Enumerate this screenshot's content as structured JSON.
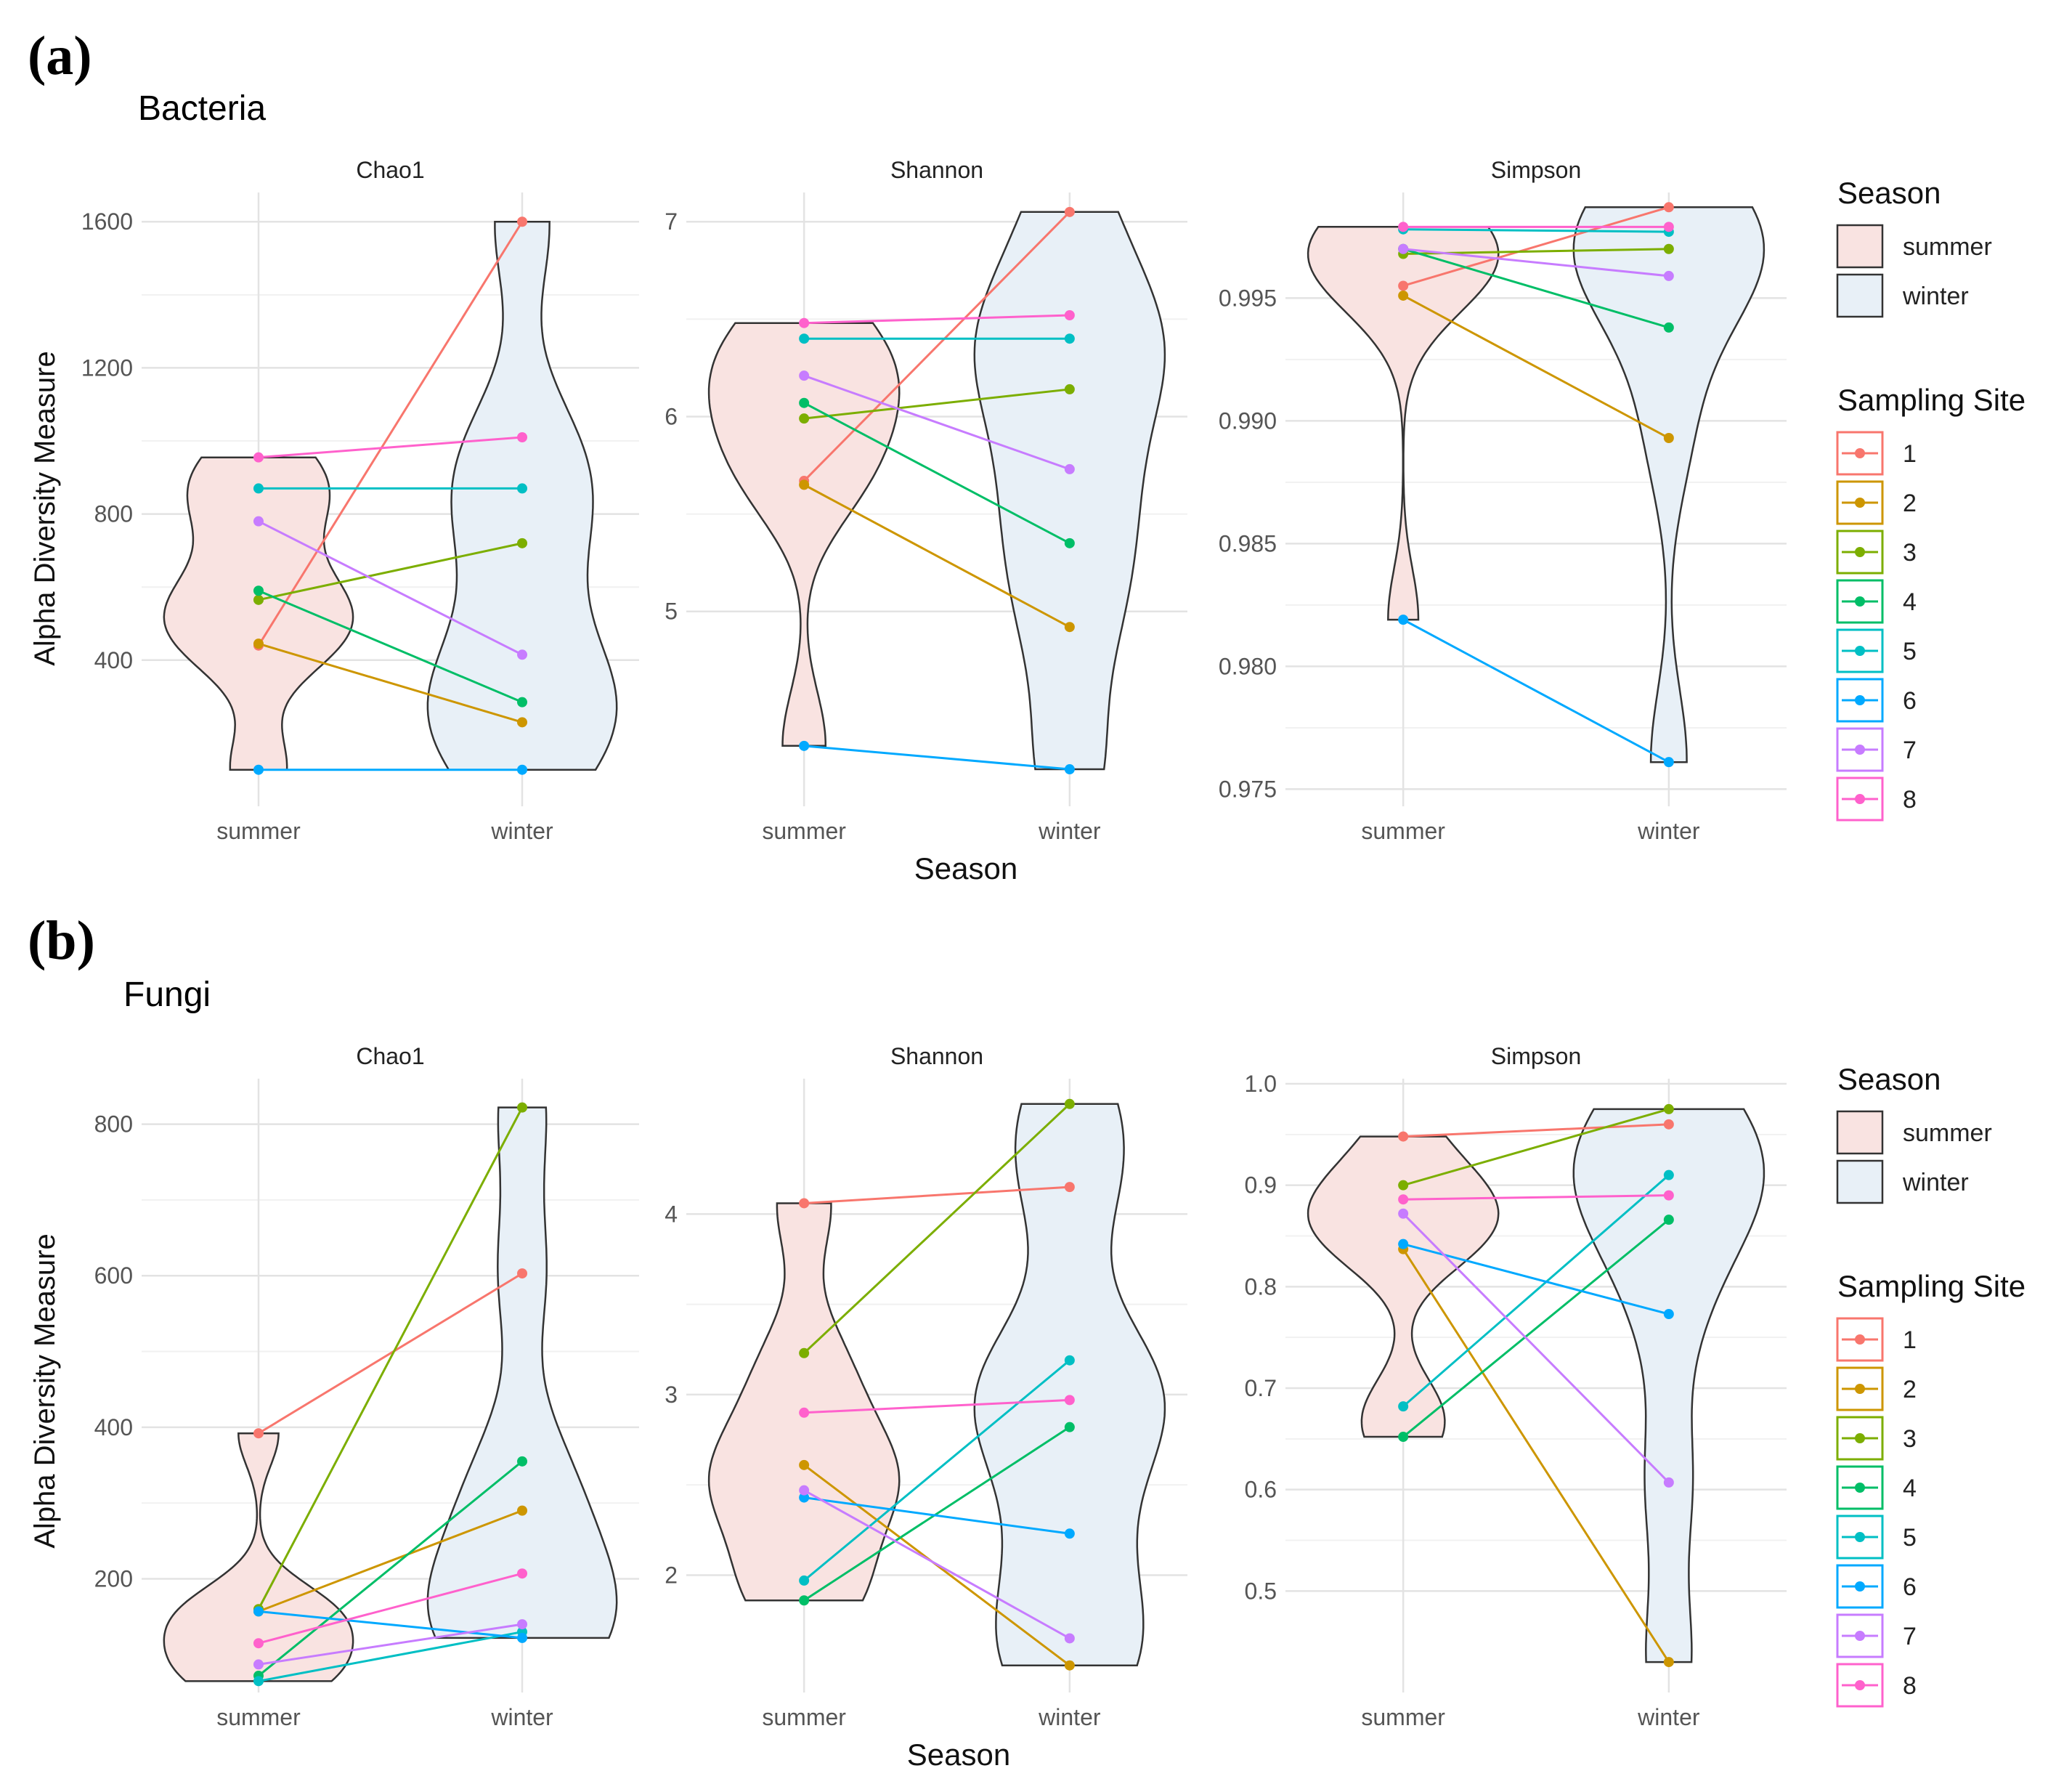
{
  "panels": [
    {
      "label": "(a)",
      "title": "Bacteria",
      "x_title": "Season",
      "y_title": "Alpha Diversity Measure"
    },
    {
      "label": "(b)",
      "title": "Fungi",
      "x_title": "Season",
      "y_title": "Alpha Diversity Measure"
    }
  ],
  "legend": {
    "season_title": "Season",
    "season_items": [
      {
        "label": "summer",
        "fill": "#f9e3e1"
      },
      {
        "label": "winter",
        "fill": "#e8f0f7"
      }
    ],
    "site_title": "Sampling Site",
    "site_items": [
      {
        "label": "1",
        "color": "#F8766D"
      },
      {
        "label": "2",
        "color": "#CD9600"
      },
      {
        "label": "3",
        "color": "#7CAE00"
      },
      {
        "label": "4",
        "color": "#00BE67"
      },
      {
        "label": "5",
        "color": "#00BFC4"
      },
      {
        "label": "6",
        "color": "#00A9FF"
      },
      {
        "label": "7",
        "color": "#C77CFF"
      },
      {
        "label": "8",
        "color": "#FF61CC"
      }
    ]
  },
  "chart_data": [
    {
      "type": "violin",
      "panel": 0,
      "title": "Chao1",
      "xlabel": "Season",
      "ylabel": "Alpha Diversity Measure",
      "categories": [
        "summer",
        "winter"
      ],
      "ylim": [
        0,
        1680
      ],
      "yticks": [
        400,
        800,
        1200,
        1600
      ],
      "ytick_labels": [
        "400",
        "800",
        "1200",
        "1600"
      ],
      "series": [
        {
          "name": "1",
          "values": [
            440,
            1600
          ]
        },
        {
          "name": "2",
          "values": [
            445,
            230
          ]
        },
        {
          "name": "3",
          "values": [
            565,
            720
          ]
        },
        {
          "name": "4",
          "values": [
            590,
            285
          ]
        },
        {
          "name": "5",
          "values": [
            870,
            870
          ]
        },
        {
          "name": "6",
          "values": [
            100,
            100
          ]
        },
        {
          "name": "7",
          "values": [
            780,
            415
          ]
        },
        {
          "name": "8",
          "values": [
            955,
            1010
          ]
        }
      ]
    },
    {
      "type": "violin",
      "panel": 0,
      "title": "Shannon",
      "xlabel": "Season",
      "ylabel": "Alpha Diversity Measure",
      "categories": [
        "summer",
        "winter"
      ],
      "ylim": [
        4.0,
        7.15
      ],
      "yticks": [
        5,
        6,
        7
      ],
      "ytick_labels": [
        "5",
        "6",
        "7"
      ],
      "series": [
        {
          "name": "1",
          "values": [
            5.67,
            7.05
          ]
        },
        {
          "name": "2",
          "values": [
            5.65,
            4.92
          ]
        },
        {
          "name": "3",
          "values": [
            5.99,
            6.14
          ]
        },
        {
          "name": "4",
          "values": [
            6.07,
            5.35
          ]
        },
        {
          "name": "5",
          "values": [
            6.4,
            6.4
          ]
        },
        {
          "name": "6",
          "values": [
            4.31,
            4.19
          ]
        },
        {
          "name": "7",
          "values": [
            6.21,
            5.73
          ]
        },
        {
          "name": "8",
          "values": [
            6.48,
            6.52
          ]
        }
      ]
    },
    {
      "type": "violin",
      "panel": 0,
      "title": "Simpson",
      "xlabel": "Season",
      "ylabel": "Alpha Diversity Measure",
      "categories": [
        "summer",
        "winter"
      ],
      "ylim": [
        0.9743,
        0.9993
      ],
      "yticks": [
        0.975,
        0.98,
        0.985,
        0.99,
        0.995
      ],
      "ytick_labels": [
        "0.975",
        "0.980",
        "0.985",
        "0.990",
        "0.995"
      ],
      "series": [
        {
          "name": "1",
          "values": [
            0.9955,
            0.9987
          ]
        },
        {
          "name": "2",
          "values": [
            0.9951,
            0.9893
          ]
        },
        {
          "name": "3",
          "values": [
            0.9968,
            0.997
          ]
        },
        {
          "name": "4",
          "values": [
            0.997,
            0.9938
          ]
        },
        {
          "name": "5",
          "values": [
            0.9978,
            0.9977
          ]
        },
        {
          "name": "6",
          "values": [
            0.9819,
            0.9761
          ]
        },
        {
          "name": "7",
          "values": [
            0.997,
            0.9959
          ]
        },
        {
          "name": "8",
          "values": [
            0.9979,
            0.9979
          ]
        }
      ]
    },
    {
      "type": "violin",
      "panel": 1,
      "title": "Chao1",
      "xlabel": "Season",
      "ylabel": "Alpha Diversity Measure",
      "categories": [
        "summer",
        "winter"
      ],
      "ylim": [
        50,
        860
      ],
      "yticks": [
        200,
        400,
        600,
        800
      ],
      "ytick_labels": [
        "200",
        "400",
        "600",
        "800"
      ],
      "series": [
        {
          "name": "1",
          "values": [
            392,
            603
          ]
        },
        {
          "name": "2",
          "values": [
            157,
            290
          ]
        },
        {
          "name": "3",
          "values": [
            160,
            822
          ]
        },
        {
          "name": "4",
          "values": [
            72,
            355
          ]
        },
        {
          "name": "5",
          "values": [
            65,
            130
          ]
        },
        {
          "name": "6",
          "values": [
            157,
            122
          ]
        },
        {
          "name": "7",
          "values": [
            87,
            140
          ]
        },
        {
          "name": "8",
          "values": [
            115,
            207
          ]
        }
      ]
    },
    {
      "type": "violin",
      "panel": 1,
      "title": "Shannon",
      "xlabel": "Season",
      "ylabel": "Alpha Diversity Measure",
      "categories": [
        "summer",
        "winter"
      ],
      "ylim": [
        1.35,
        4.75
      ],
      "yticks": [
        2,
        3,
        4
      ],
      "ytick_labels": [
        "2",
        "3",
        "4"
      ],
      "series": [
        {
          "name": "1",
          "values": [
            4.06,
            4.15
          ]
        },
        {
          "name": "2",
          "values": [
            2.61,
            1.5
          ]
        },
        {
          "name": "3",
          "values": [
            3.23,
            4.61
          ]
        },
        {
          "name": "4",
          "values": [
            1.86,
            2.82
          ]
        },
        {
          "name": "5",
          "values": [
            1.97,
            3.19
          ]
        },
        {
          "name": "6",
          "values": [
            2.43,
            2.23
          ]
        },
        {
          "name": "7",
          "values": [
            2.47,
            1.65
          ]
        },
        {
          "name": "8",
          "values": [
            2.9,
            2.97
          ]
        }
      ]
    },
    {
      "type": "violin",
      "panel": 1,
      "title": "Simpson",
      "xlabel": "Season",
      "ylabel": "Alpha Diversity Measure",
      "categories": [
        "summer",
        "winter"
      ],
      "ylim": [
        0.4,
        1.005
      ],
      "yticks": [
        0.5,
        0.6,
        0.7,
        0.8,
        0.9,
        1.0
      ],
      "ytick_labels": [
        "0.5",
        "0.6",
        "0.7",
        "0.8",
        "0.9",
        "1.0"
      ],
      "series": [
        {
          "name": "1",
          "values": [
            0.948,
            0.96
          ]
        },
        {
          "name": "2",
          "values": [
            0.837,
            0.43
          ]
        },
        {
          "name": "3",
          "values": [
            0.9,
            0.975
          ]
        },
        {
          "name": "4",
          "values": [
            0.652,
            0.866
          ]
        },
        {
          "name": "5",
          "values": [
            0.682,
            0.91
          ]
        },
        {
          "name": "6",
          "values": [
            0.842,
            0.773
          ]
        },
        {
          "name": "7",
          "values": [
            0.872,
            0.607
          ]
        },
        {
          "name": "8",
          "values": [
            0.886,
            0.89
          ]
        }
      ]
    }
  ]
}
